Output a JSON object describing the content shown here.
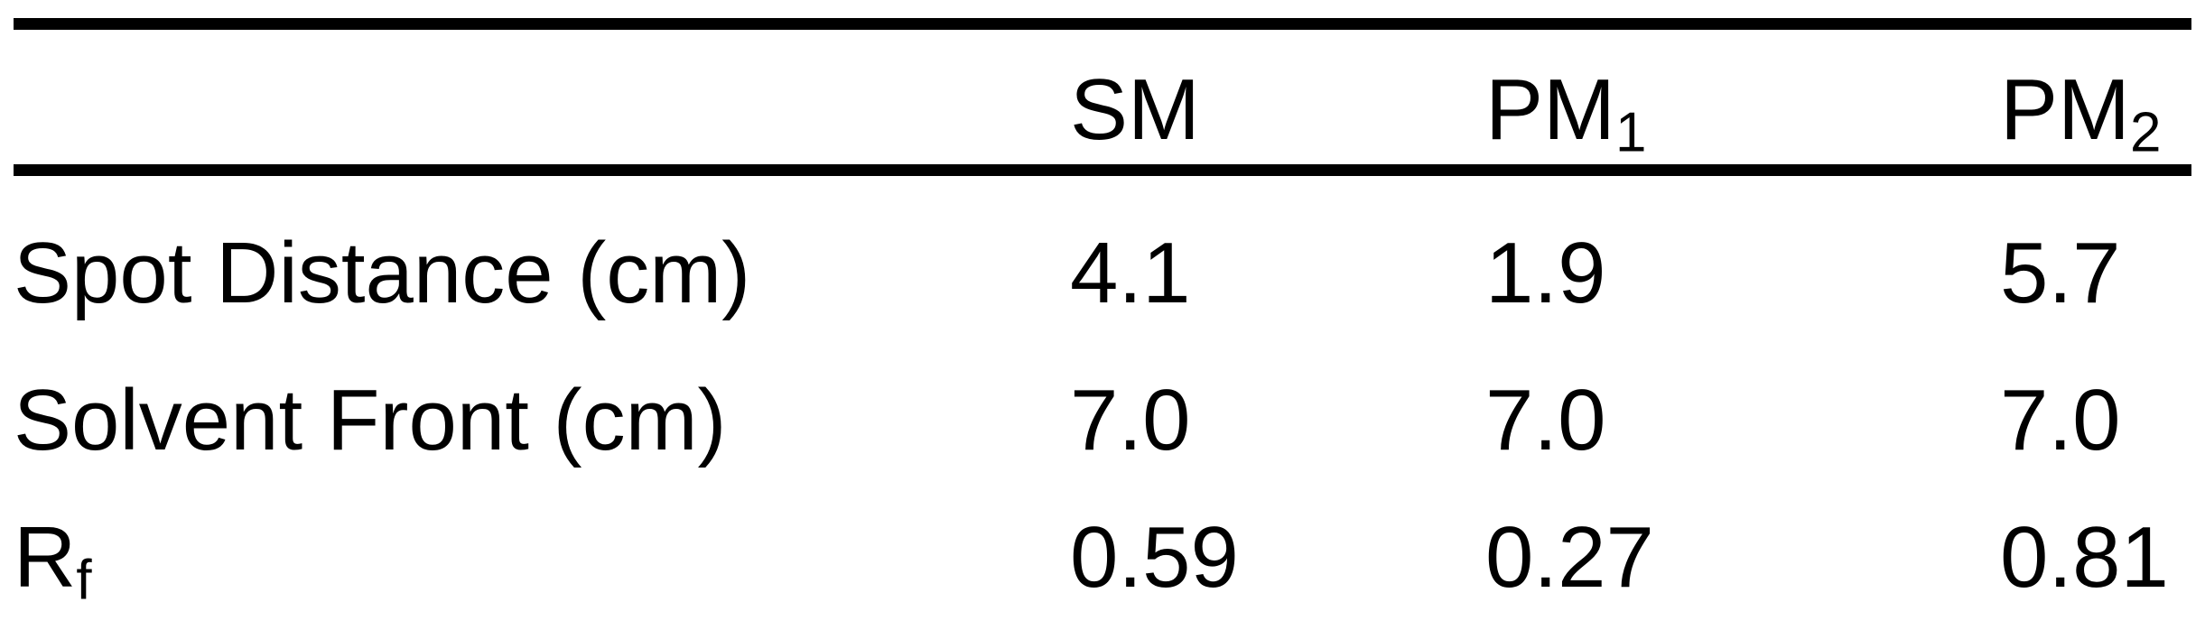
{
  "table": {
    "header": {
      "col1": {
        "main": "SM",
        "sub": ""
      },
      "col2": {
        "main": "PM",
        "sub": "1"
      },
      "col3": {
        "main": "PM",
        "sub": "2"
      }
    },
    "rows": [
      {
        "label": "Spot Distance (cm)",
        "label_sub": "",
        "values": [
          "4.1",
          "1.9",
          "5.7"
        ]
      },
      {
        "label": "Solvent Front (cm)",
        "label_sub": "",
        "values": [
          "7.0",
          "7.0",
          "7.0"
        ]
      },
      {
        "label": "R",
        "label_sub": "f",
        "values": [
          "0.59",
          "0.27",
          "0.81"
        ]
      }
    ]
  }
}
